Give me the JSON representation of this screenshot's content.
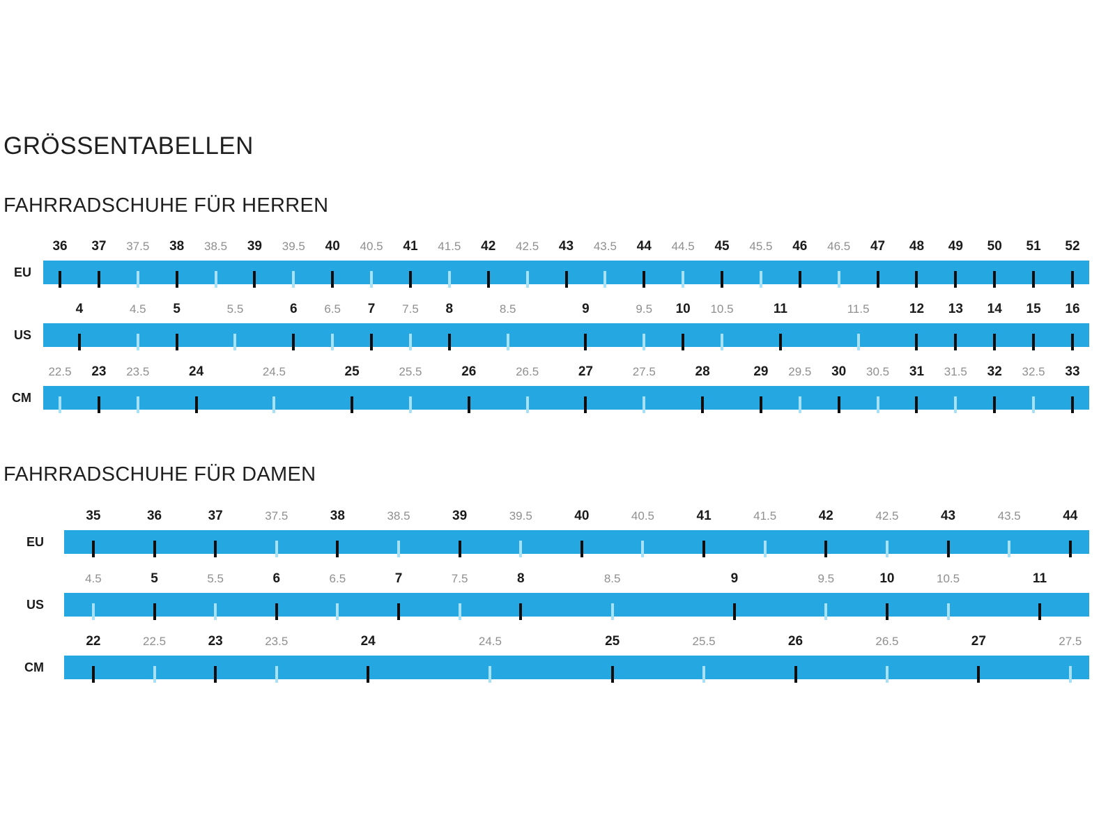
{
  "title": "GRÖSSENTABELLEN",
  "colors": {
    "bar": "#25a8e1",
    "tick_major": "#0e0e0e",
    "tick_minor": "#a6e1f7",
    "label_major": "#1b1b1b",
    "label_minor": "#8f8f8f",
    "heading": "#1f1f1f"
  },
  "chart_data": [
    {
      "type": "table",
      "title": "FAHRRADSCHUHE FÜR HERREN",
      "units": [
        "EU",
        "US",
        "CM"
      ],
      "layout": {
        "pad_left_pct": 1.6,
        "pad_right_pct": 1.6,
        "max_slot": 26
      },
      "scales": [
        {
          "unit": "EU",
          "marks": [
            {
              "label": "36",
              "major": true,
              "slot": 0
            },
            {
              "label": "37",
              "major": true,
              "slot": 1
            },
            {
              "label": "37.5",
              "major": false,
              "slot": 2
            },
            {
              "label": "38",
              "major": true,
              "slot": 3
            },
            {
              "label": "38.5",
              "major": false,
              "slot": 4
            },
            {
              "label": "39",
              "major": true,
              "slot": 5
            },
            {
              "label": "39.5",
              "major": false,
              "slot": 6
            },
            {
              "label": "40",
              "major": true,
              "slot": 7
            },
            {
              "label": "40.5",
              "major": false,
              "slot": 8
            },
            {
              "label": "41",
              "major": true,
              "slot": 9
            },
            {
              "label": "41.5",
              "major": false,
              "slot": 10
            },
            {
              "label": "42",
              "major": true,
              "slot": 11
            },
            {
              "label": "42.5",
              "major": false,
              "slot": 12
            },
            {
              "label": "43",
              "major": true,
              "slot": 13
            },
            {
              "label": "43.5",
              "major": false,
              "slot": 14
            },
            {
              "label": "44",
              "major": true,
              "slot": 15
            },
            {
              "label": "44.5",
              "major": false,
              "slot": 16
            },
            {
              "label": "45",
              "major": true,
              "slot": 17
            },
            {
              "label": "45.5",
              "major": false,
              "slot": 18
            },
            {
              "label": "46",
              "major": true,
              "slot": 19
            },
            {
              "label": "46.5",
              "major": false,
              "slot": 20
            },
            {
              "label": "47",
              "major": true,
              "slot": 21
            },
            {
              "label": "48",
              "major": true,
              "slot": 22
            },
            {
              "label": "49",
              "major": true,
              "slot": 23
            },
            {
              "label": "50",
              "major": true,
              "slot": 24
            },
            {
              "label": "51",
              "major": true,
              "slot": 25
            },
            {
              "label": "52",
              "major": true,
              "slot": 26
            }
          ]
        },
        {
          "unit": "US",
          "marks": [
            {
              "label": "4",
              "major": true,
              "slot": 0.5
            },
            {
              "label": "4.5",
              "major": false,
              "slot": 2
            },
            {
              "label": "5",
              "major": true,
              "slot": 3
            },
            {
              "label": "5.5",
              "major": false,
              "slot": 4.5
            },
            {
              "label": "6",
              "major": true,
              "slot": 6
            },
            {
              "label": "6.5",
              "major": false,
              "slot": 7
            },
            {
              "label": "7",
              "major": true,
              "slot": 8
            },
            {
              "label": "7.5",
              "major": false,
              "slot": 9
            },
            {
              "label": "8",
              "major": true,
              "slot": 10
            },
            {
              "label": "8.5",
              "major": false,
              "slot": 11.5
            },
            {
              "label": "9",
              "major": true,
              "slot": 13.5
            },
            {
              "label": "9.5",
              "major": false,
              "slot": 15
            },
            {
              "label": "10",
              "major": true,
              "slot": 16
            },
            {
              "label": "10.5",
              "major": false,
              "slot": 17
            },
            {
              "label": "11",
              "major": true,
              "slot": 18.5
            },
            {
              "label": "11.5",
              "major": false,
              "slot": 20.5
            },
            {
              "label": "12",
              "major": true,
              "slot": 22
            },
            {
              "label": "13",
              "major": true,
              "slot": 23
            },
            {
              "label": "14",
              "major": true,
              "slot": 24
            },
            {
              "label": "15",
              "major": true,
              "slot": 25
            },
            {
              "label": "16",
              "major": true,
              "slot": 26
            }
          ]
        },
        {
          "unit": "CM",
          "marks": [
            {
              "label": "22.5",
              "major": false,
              "slot": 0
            },
            {
              "label": "23",
              "major": true,
              "slot": 1
            },
            {
              "label": "23.5",
              "major": false,
              "slot": 2
            },
            {
              "label": "24",
              "major": true,
              "slot": 3.5
            },
            {
              "label": "24.5",
              "major": false,
              "slot": 5.5
            },
            {
              "label": "25",
              "major": true,
              "slot": 7.5
            },
            {
              "label": "25.5",
              "major": false,
              "slot": 9
            },
            {
              "label": "26",
              "major": true,
              "slot": 10.5
            },
            {
              "label": "26.5",
              "major": false,
              "slot": 12
            },
            {
              "label": "27",
              "major": true,
              "slot": 13.5
            },
            {
              "label": "27.5",
              "major": false,
              "slot": 15
            },
            {
              "label": "28",
              "major": true,
              "slot": 16.5
            },
            {
              "label": "29",
              "major": true,
              "slot": 18
            },
            {
              "label": "29.5",
              "major": false,
              "slot": 19
            },
            {
              "label": "30",
              "major": true,
              "slot": 20
            },
            {
              "label": "30.5",
              "major": false,
              "slot": 21
            },
            {
              "label": "31",
              "major": true,
              "slot": 22
            },
            {
              "label": "31.5",
              "major": false,
              "slot": 23
            },
            {
              "label": "32",
              "major": true,
              "slot": 24
            },
            {
              "label": "32.5",
              "major": false,
              "slot": 25
            },
            {
              "label": "33",
              "major": true,
              "slot": 26
            }
          ]
        }
      ]
    },
    {
      "type": "table",
      "title": "FAHRRADSCHUHE FÜR DAMEN",
      "units": [
        "EU",
        "US",
        "CM"
      ],
      "layout": {
        "pad_left_pct": 2.85,
        "pad_right_pct": 1.85,
        "max_slot": 16
      },
      "scales": [
        {
          "unit": "EU",
          "marks": [
            {
              "label": "35",
              "major": true,
              "slot": 0
            },
            {
              "label": "36",
              "major": true,
              "slot": 1
            },
            {
              "label": "37",
              "major": true,
              "slot": 2
            },
            {
              "label": "37.5",
              "major": false,
              "slot": 3
            },
            {
              "label": "38",
              "major": true,
              "slot": 4
            },
            {
              "label": "38.5",
              "major": false,
              "slot": 5
            },
            {
              "label": "39",
              "major": true,
              "slot": 6
            },
            {
              "label": "39.5",
              "major": false,
              "slot": 7
            },
            {
              "label": "40",
              "major": true,
              "slot": 8
            },
            {
              "label": "40.5",
              "major": false,
              "slot": 9
            },
            {
              "label": "41",
              "major": true,
              "slot": 10
            },
            {
              "label": "41.5",
              "major": false,
              "slot": 11
            },
            {
              "label": "42",
              "major": true,
              "slot": 12
            },
            {
              "label": "42.5",
              "major": false,
              "slot": 13
            },
            {
              "label": "43",
              "major": true,
              "slot": 14
            },
            {
              "label": "43.5",
              "major": false,
              "slot": 15
            },
            {
              "label": "44",
              "major": true,
              "slot": 16
            }
          ]
        },
        {
          "unit": "US",
          "marks": [
            {
              "label": "4.5",
              "major": false,
              "slot": 0
            },
            {
              "label": "5",
              "major": true,
              "slot": 1
            },
            {
              "label": "5.5",
              "major": false,
              "slot": 2
            },
            {
              "label": "6",
              "major": true,
              "slot": 3
            },
            {
              "label": "6.5",
              "major": false,
              "slot": 4
            },
            {
              "label": "7",
              "major": true,
              "slot": 5
            },
            {
              "label": "7.5",
              "major": false,
              "slot": 6
            },
            {
              "label": "8",
              "major": true,
              "slot": 7
            },
            {
              "label": "8.5",
              "major": false,
              "slot": 8.5
            },
            {
              "label": "9",
              "major": true,
              "slot": 10.5
            },
            {
              "label": "9.5",
              "major": false,
              "slot": 12
            },
            {
              "label": "10",
              "major": true,
              "slot": 13
            },
            {
              "label": "10.5",
              "major": false,
              "slot": 14
            },
            {
              "label": "11",
              "major": true,
              "slot": 15.5
            }
          ]
        },
        {
          "unit": "CM",
          "marks": [
            {
              "label": "22",
              "major": true,
              "slot": 0
            },
            {
              "label": "22.5",
              "major": false,
              "slot": 1
            },
            {
              "label": "23",
              "major": true,
              "slot": 2
            },
            {
              "label": "23.5",
              "major": false,
              "slot": 3
            },
            {
              "label": "24",
              "major": true,
              "slot": 4.5
            },
            {
              "label": "24.5",
              "major": false,
              "slot": 6.5
            },
            {
              "label": "25",
              "major": true,
              "slot": 8.5
            },
            {
              "label": "25.5",
              "major": false,
              "slot": 10
            },
            {
              "label": "26",
              "major": true,
              "slot": 11.5
            },
            {
              "label": "26.5",
              "major": false,
              "slot": 13
            },
            {
              "label": "27",
              "major": true,
              "slot": 14.5
            },
            {
              "label": "27.5",
              "major": false,
              "slot": 16
            }
          ]
        }
      ]
    }
  ]
}
